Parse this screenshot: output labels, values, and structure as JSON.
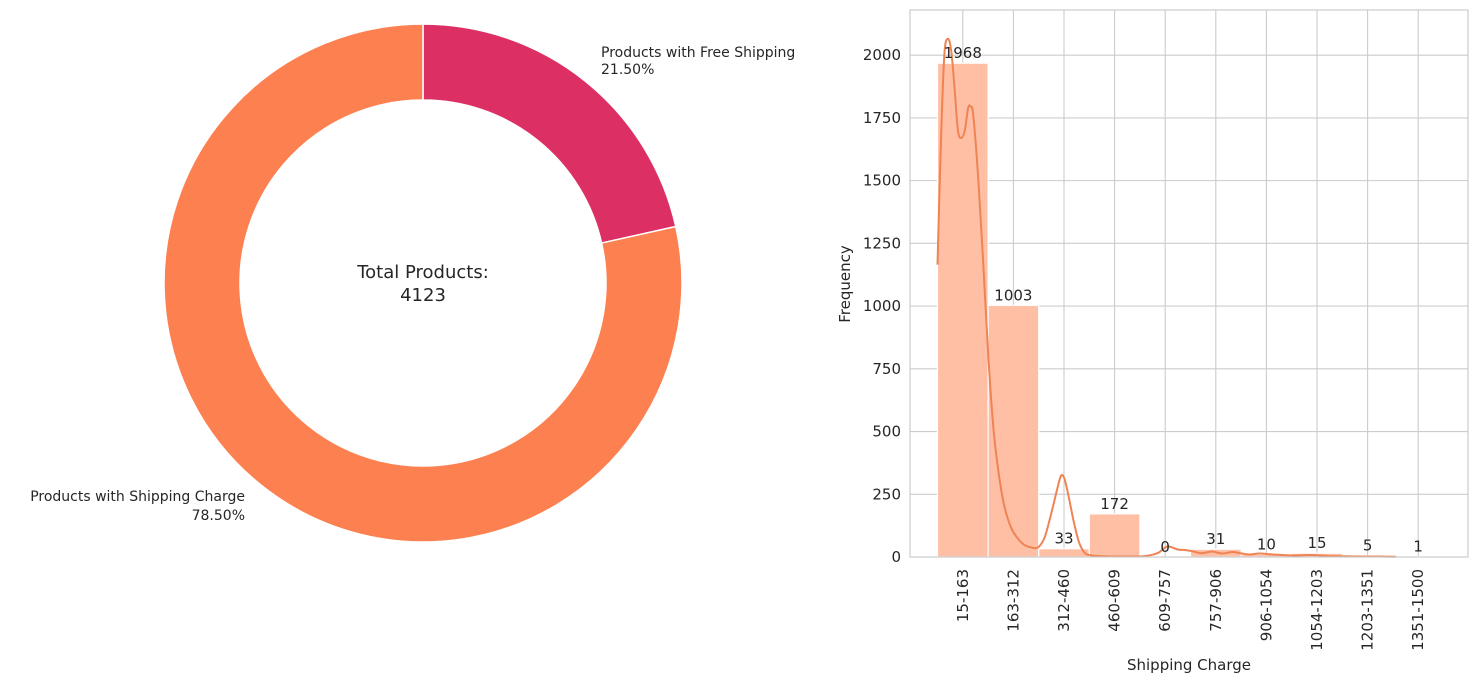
{
  "chart_data": [
    {
      "type": "pie",
      "style": "donut",
      "center_text": {
        "line1": "Total Products:",
        "line2": "4123"
      },
      "slices": [
        {
          "label": "Products with Free Shipping",
          "percent_label": "21.50%",
          "value": 21.5,
          "color": "#dc3065"
        },
        {
          "label": "Products with Shipping Charge",
          "percent_label": "78.50%",
          "value": 78.5,
          "color": "#fd8050"
        }
      ]
    },
    {
      "type": "bar",
      "xlabel": "Shipping Charge",
      "ylabel": "Frequency",
      "ylim": [
        0,
        2180
      ],
      "yticks": [
        "0",
        "250",
        "500",
        "750",
        "1000",
        "1250",
        "1500",
        "1750",
        "2000"
      ],
      "grid": true,
      "bar_color": "#ffbfa5",
      "kde_color": "#ef8354",
      "categories": [
        "15-163",
        "163-312",
        "312-460",
        "460-609",
        "609-757",
        "757-906",
        "906-1054",
        "1054-1203",
        "1203-1351",
        "1351-1500"
      ],
      "values": [
        1968,
        1003,
        33,
        172,
        0,
        31,
        10,
        15,
        5,
        1
      ],
      "data_labels": [
        "1968",
        "1003",
        "33",
        "172",
        "0",
        "31",
        "10",
        "15",
        "5",
        "1"
      ],
      "kde_curve": [
        [
          15,
          1165
        ],
        [
          25,
          1650
        ],
        [
          35,
          2000
        ],
        [
          45,
          2065
        ],
        [
          55,
          2020
        ],
        [
          65,
          1870
        ],
        [
          75,
          1700
        ],
        [
          85,
          1670
        ],
        [
          95,
          1700
        ],
        [
          105,
          1790
        ],
        [
          112,
          1795
        ],
        [
          120,
          1760
        ],
        [
          135,
          1500
        ],
        [
          150,
          1150
        ],
        [
          165,
          780
        ],
        [
          180,
          500
        ],
        [
          195,
          330
        ],
        [
          210,
          210
        ],
        [
          230,
          120
        ],
        [
          250,
          75
        ],
        [
          270,
          48
        ],
        [
          290,
          38
        ],
        [
          300,
          36
        ],
        [
          312,
          40
        ],
        [
          330,
          80
        ],
        [
          350,
          180
        ],
        [
          368,
          280
        ],
        [
          378,
          325
        ],
        [
          388,
          310
        ],
        [
          400,
          240
        ],
        [
          415,
          140
        ],
        [
          430,
          60
        ],
        [
          445,
          20
        ],
        [
          460,
          8
        ],
        [
          500,
          3
        ],
        [
          560,
          2
        ],
        [
          620,
          3
        ],
        [
          660,
          15
        ],
        [
          680,
          35
        ],
        [
          690,
          42
        ],
        [
          700,
          40
        ],
        [
          720,
          30
        ],
        [
          740,
          28
        ],
        [
          760,
          24
        ],
        [
          790,
          15
        ],
        [
          820,
          22
        ],
        [
          850,
          14
        ],
        [
          880,
          20
        ],
        [
          900,
          16
        ],
        [
          930,
          10
        ],
        [
          960,
          14
        ],
        [
          1000,
          10
        ],
        [
          1060,
          6
        ],
        [
          1110,
          8
        ],
        [
          1160,
          4
        ],
        [
          1210,
          3
        ],
        [
          1260,
          2
        ],
        [
          1310,
          2
        ],
        [
          1360,
          1
        ]
      ]
    }
  ]
}
